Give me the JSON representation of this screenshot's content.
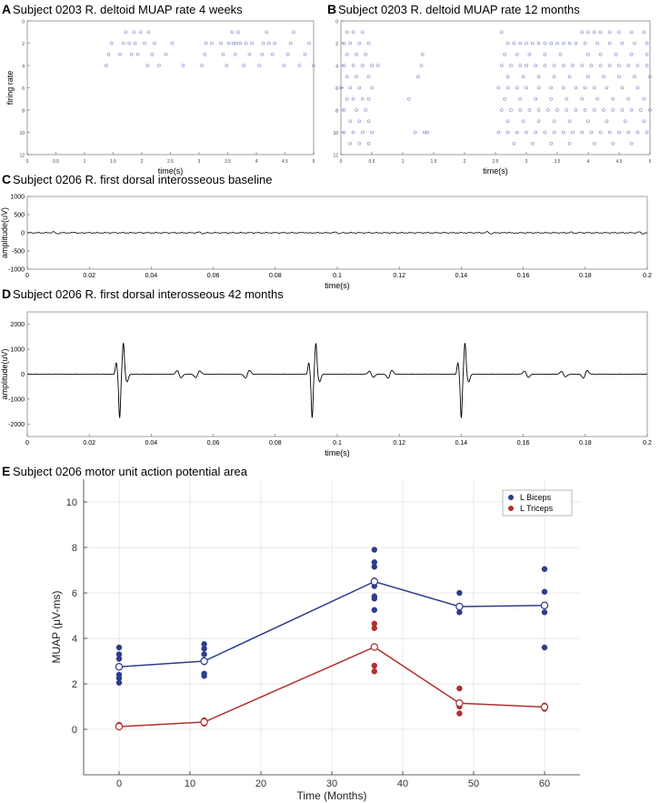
{
  "chart_data": [
    {
      "id": "A",
      "type": "scatter",
      "panel_label": "A",
      "title": "Subject 0203 R. deltoid MUAP rate 4 weeks",
      "xlabel": "time(s)",
      "ylabel": "firing rate",
      "xlim": [
        0,
        5
      ],
      "ylim": [
        0,
        12
      ],
      "y_reversed": true,
      "x_ticks": [
        0,
        0.5,
        1,
        1.5,
        2,
        2.5,
        3,
        3.5,
        4,
        4.5,
        5
      ],
      "y_ticks": [
        0,
        2,
        4,
        6,
        8,
        10,
        12
      ],
      "color": "#7b83c9",
      "points": [
        [
          1.38,
          4
        ],
        [
          1.42,
          3
        ],
        [
          1.47,
          2
        ],
        [
          1.62,
          3
        ],
        [
          1.68,
          2
        ],
        [
          1.72,
          1
        ],
        [
          1.78,
          2
        ],
        [
          1.82,
          3
        ],
        [
          1.86,
          1
        ],
        [
          1.88,
          2
        ],
        [
          1.93,
          3
        ],
        [
          1.98,
          1
        ],
        [
          2.05,
          2
        ],
        [
          2.1,
          4
        ],
        [
          2.12,
          1
        ],
        [
          2.18,
          3
        ],
        [
          2.22,
          2
        ],
        [
          2.3,
          4
        ],
        [
          2.42,
          3
        ],
        [
          2.53,
          2
        ],
        [
          2.72,
          4
        ],
        [
          3.05,
          4
        ],
        [
          3.1,
          3
        ],
        [
          3.12,
          2
        ],
        [
          3.22,
          2
        ],
        [
          3.38,
          2
        ],
        [
          3.42,
          3
        ],
        [
          3.48,
          4
        ],
        [
          3.52,
          2
        ],
        [
          3.58,
          1
        ],
        [
          3.6,
          2
        ],
        [
          3.63,
          3
        ],
        [
          3.65,
          2
        ],
        [
          3.68,
          1
        ],
        [
          3.72,
          2
        ],
        [
          3.78,
          4
        ],
        [
          3.82,
          2
        ],
        [
          3.88,
          3
        ],
        [
          3.92,
          2
        ],
        [
          4.05,
          4
        ],
        [
          4.1,
          3
        ],
        [
          4.12,
          2
        ],
        [
          4.18,
          1
        ],
        [
          4.22,
          2
        ],
        [
          4.28,
          3
        ],
        [
          4.32,
          2
        ],
        [
          4.48,
          4
        ],
        [
          4.55,
          3
        ],
        [
          4.6,
          2
        ],
        [
          4.65,
          1
        ],
        [
          4.75,
          4
        ],
        [
          4.85,
          3
        ],
        [
          4.92,
          2
        ],
        [
          5.0,
          4
        ]
      ]
    },
    {
      "id": "B",
      "type": "scatter",
      "panel_label": "B",
      "title": "Subject 0203 R. deltoid MUAP rate 12 months",
      "xlabel": "time(s)",
      "ylabel": "",
      "xlim": [
        0,
        5
      ],
      "ylim": [
        0,
        12
      ],
      "y_reversed": true,
      "x_ticks": [
        0,
        0.5,
        1,
        1.5,
        2,
        2.5,
        3,
        3.5,
        4,
        4.5,
        5
      ],
      "y_ticks": [
        0,
        2,
        4,
        6,
        8,
        10,
        12
      ],
      "color": "#7b83c9",
      "points": [
        [
          0.1,
          1
        ],
        [
          0.2,
          1
        ],
        [
          0.35,
          1
        ],
        [
          0.05,
          2
        ],
        [
          0.15,
          2
        ],
        [
          0.3,
          2
        ],
        [
          0.45,
          2
        ],
        [
          0.1,
          3
        ],
        [
          0.25,
          3
        ],
        [
          0.4,
          3
        ],
        [
          0.05,
          4
        ],
        [
          0.2,
          4
        ],
        [
          0.35,
          4
        ],
        [
          0.5,
          4
        ],
        [
          0.6,
          4
        ],
        [
          0.1,
          5
        ],
        [
          0.25,
          5
        ],
        [
          0.45,
          5
        ],
        [
          0.0,
          6
        ],
        [
          0.15,
          6
        ],
        [
          0.3,
          6
        ],
        [
          0.5,
          6
        ],
        [
          0.1,
          7
        ],
        [
          0.2,
          7
        ],
        [
          0.35,
          7
        ],
        [
          0.45,
          7
        ],
        [
          0.05,
          8
        ],
        [
          0.25,
          8
        ],
        [
          0.4,
          8
        ],
        [
          0.15,
          9
        ],
        [
          0.3,
          9
        ],
        [
          0.45,
          9
        ],
        [
          0.05,
          10
        ],
        [
          0.2,
          10
        ],
        [
          0.35,
          10
        ],
        [
          0.5,
          10
        ],
        [
          0.15,
          11
        ],
        [
          0.3,
          11
        ],
        [
          0.45,
          11
        ],
        [
          1.3,
          4
        ],
        [
          1.25,
          5
        ],
        [
          1.32,
          3
        ],
        [
          1.1,
          7
        ],
        [
          1.35,
          10
        ],
        [
          1.4,
          10
        ],
        [
          1.2,
          10
        ],
        [
          2.6,
          1
        ],
        [
          2.7,
          2
        ],
        [
          2.8,
          2
        ],
        [
          2.9,
          2
        ],
        [
          3.0,
          2
        ],
        [
          3.1,
          2
        ],
        [
          3.2,
          2
        ],
        [
          3.3,
          2
        ],
        [
          3.4,
          2
        ],
        [
          3.5,
          2
        ],
        [
          3.6,
          2
        ],
        [
          3.7,
          2
        ],
        [
          3.8,
          2
        ],
        [
          2.65,
          3
        ],
        [
          2.85,
          3
        ],
        [
          3.05,
          3
        ],
        [
          3.3,
          3
        ],
        [
          3.55,
          3
        ],
        [
          2.6,
          4
        ],
        [
          2.75,
          4
        ],
        [
          2.9,
          4
        ],
        [
          3.0,
          4
        ],
        [
          3.15,
          4
        ],
        [
          3.3,
          4
        ],
        [
          3.45,
          4
        ],
        [
          3.6,
          4
        ],
        [
          3.75,
          4
        ],
        [
          2.7,
          5
        ],
        [
          2.95,
          5
        ],
        [
          3.2,
          5
        ],
        [
          3.45,
          5
        ],
        [
          3.7,
          5
        ],
        [
          2.55,
          6
        ],
        [
          2.7,
          6
        ],
        [
          2.85,
          6
        ],
        [
          3.0,
          6
        ],
        [
          3.2,
          6
        ],
        [
          3.4,
          6
        ],
        [
          3.6,
          6
        ],
        [
          3.8,
          6
        ],
        [
          2.65,
          7
        ],
        [
          2.9,
          7
        ],
        [
          3.15,
          7
        ],
        [
          3.4,
          7
        ],
        [
          3.65,
          7
        ],
        [
          2.6,
          8
        ],
        [
          2.75,
          8
        ],
        [
          2.9,
          8
        ],
        [
          3.05,
          8
        ],
        [
          3.2,
          8
        ],
        [
          3.35,
          8
        ],
        [
          3.5,
          8
        ],
        [
          3.65,
          8
        ],
        [
          3.8,
          8
        ],
        [
          2.7,
          9
        ],
        [
          2.95,
          9
        ],
        [
          3.2,
          9
        ],
        [
          3.45,
          9
        ],
        [
          3.7,
          9
        ],
        [
          2.55,
          10
        ],
        [
          2.7,
          10
        ],
        [
          2.85,
          10
        ],
        [
          3.0,
          10
        ],
        [
          3.15,
          10
        ],
        [
          3.3,
          10
        ],
        [
          3.45,
          10
        ],
        [
          3.6,
          10
        ],
        [
          3.75,
          10
        ],
        [
          2.8,
          11
        ],
        [
          3.1,
          11
        ],
        [
          3.4,
          11
        ],
        [
          3.7,
          11
        ],
        [
          3.9,
          1
        ],
        [
          4.0,
          1
        ],
        [
          4.1,
          1
        ],
        [
          4.2,
          1
        ],
        [
          4.35,
          1
        ],
        [
          4.5,
          1
        ],
        [
          4.7,
          1
        ],
        [
          4.9,
          1
        ],
        [
          3.95,
          2
        ],
        [
          4.15,
          2
        ],
        [
          4.35,
          2
        ],
        [
          4.55,
          2
        ],
        [
          4.75,
          2
        ],
        [
          4.95,
          2
        ],
        [
          4.0,
          3
        ],
        [
          4.2,
          3
        ],
        [
          4.45,
          3
        ],
        [
          4.7,
          3
        ],
        [
          4.95,
          3
        ],
        [
          3.9,
          4
        ],
        [
          4.05,
          4
        ],
        [
          4.2,
          4
        ],
        [
          4.35,
          4
        ],
        [
          4.5,
          4
        ],
        [
          4.65,
          4
        ],
        [
          4.8,
          4
        ],
        [
          4.95,
          4
        ],
        [
          4.0,
          5
        ],
        [
          4.25,
          5
        ],
        [
          4.5,
          5
        ],
        [
          4.75,
          5
        ],
        [
          5.0,
          5
        ],
        [
          3.95,
          6
        ],
        [
          4.1,
          6
        ],
        [
          4.3,
          6
        ],
        [
          4.55,
          6
        ],
        [
          4.8,
          6
        ],
        [
          3.9,
          7
        ],
        [
          4.15,
          7
        ],
        [
          4.4,
          7
        ],
        [
          4.65,
          7
        ],
        [
          4.9,
          7
        ],
        [
          3.95,
          8
        ],
        [
          4.1,
          8
        ],
        [
          4.25,
          8
        ],
        [
          4.4,
          8
        ],
        [
          4.55,
          8
        ],
        [
          4.7,
          8
        ],
        [
          4.85,
          8
        ],
        [
          5.0,
          8
        ],
        [
          4.0,
          9
        ],
        [
          4.3,
          9
        ],
        [
          4.6,
          9
        ],
        [
          4.9,
          9
        ],
        [
          3.9,
          10
        ],
        [
          4.05,
          10
        ],
        [
          4.2,
          10
        ],
        [
          4.35,
          10
        ],
        [
          4.5,
          10
        ],
        [
          4.65,
          10
        ],
        [
          4.8,
          10
        ],
        [
          4.95,
          10
        ],
        [
          4.1,
          11
        ],
        [
          4.4,
          11
        ],
        [
          4.7,
          11
        ]
      ]
    },
    {
      "id": "C",
      "type": "line",
      "panel_label": "C",
      "title": "Subject 0206 R. first dorsal interosseous baseline",
      "xlabel": "time(s)",
      "ylabel": "amplitude(uV)",
      "xlim": [
        0,
        0.2
      ],
      "ylim": [
        -1000,
        1000
      ],
      "x_ticks": [
        0,
        0.02,
        0.04,
        0.06,
        0.08,
        0.1,
        0.12,
        0.14,
        0.16,
        0.18,
        0.2
      ],
      "y_ticks": [
        -1000,
        -500,
        0,
        500,
        1000
      ],
      "color": "#000000",
      "events": [
        {
          "x": 0.009,
          "amp": 60
        },
        {
          "x": 0.016,
          "amp": 35
        },
        {
          "x": 0.056,
          "amp": 45
        },
        {
          "x": 0.09,
          "amp": 25
        },
        {
          "x": 0.1,
          "amp": 40
        },
        {
          "x": 0.149,
          "amp": 55
        },
        {
          "x": 0.156,
          "amp": 30
        },
        {
          "x": 0.176,
          "amp": 35
        },
        {
          "x": 0.198,
          "amp": 55
        }
      ]
    },
    {
      "id": "D",
      "type": "line",
      "panel_label": "D",
      "title": "Subject 0206 R. first dorsal interosseous 42 months",
      "xlabel": "time(s)",
      "ylabel": "amplitude(uV)",
      "xlim": [
        0,
        0.2
      ],
      "ylim": [
        -2500,
        2500
      ],
      "x_ticks": [
        0,
        0.02,
        0.04,
        0.06,
        0.08,
        0.1,
        0.12,
        0.14,
        0.16,
        0.18,
        0.2
      ],
      "y_ticks": [
        -2000,
        -1000,
        0,
        1000,
        2000
      ],
      "color": "#000000",
      "spikes": [
        {
          "x": 0.0298
        },
        {
          "x": 0.0919
        },
        {
          "x": 0.14
        }
      ],
      "small_events": [
        {
          "x": 0.049,
          "amp": 200
        },
        {
          "x": 0.055,
          "amp": -200
        },
        {
          "x": 0.071,
          "amp": -220
        },
        {
          "x": 0.111,
          "amp": 180
        },
        {
          "x": 0.117,
          "amp": -220
        },
        {
          "x": 0.161,
          "amp": 180
        },
        {
          "x": 0.173,
          "amp": 160
        },
        {
          "x": 0.18,
          "amp": -220
        }
      ]
    },
    {
      "id": "E",
      "type": "scatter",
      "panel_label": "E",
      "title": "Subject 0206 motor unit action potential area",
      "xlabel": "Time (Months)",
      "ylabel": "MUAP (μV-ms)",
      "xlim": [
        -5,
        65
      ],
      "ylim": [
        -2,
        11
      ],
      "x_ticks": [
        0,
        10,
        20,
        30,
        40,
        50,
        60
      ],
      "y_ticks": [
        0,
        2,
        4,
        6,
        8,
        10
      ],
      "grid": true,
      "legend_position": "top-right",
      "series": [
        {
          "name": "L Biceps",
          "color": "#2e3c8c",
          "points": [
            [
              0,
              3.6
            ],
            [
              0,
              3.3
            ],
            [
              0,
              3.1
            ],
            [
              0,
              2.75
            ],
            [
              0,
              2.4
            ],
            [
              0,
              2.25
            ],
            [
              0,
              2.05
            ],
            [
              12,
              3.75
            ],
            [
              12,
              3.55
            ],
            [
              12,
              3.3
            ],
            [
              12,
              2.95
            ],
            [
              12,
              2.45
            ],
            [
              12,
              2.35
            ],
            [
              36,
              7.9
            ],
            [
              36,
              7.35
            ],
            [
              36,
              7.15
            ],
            [
              36,
              6.55
            ],
            [
              36,
              6.3
            ],
            [
              36,
              5.85
            ],
            [
              36,
              5.75
            ],
            [
              36,
              5.25
            ],
            [
              48,
              6.0
            ],
            [
              48,
              5.35
            ],
            [
              48,
              5.15
            ],
            [
              60,
              7.05
            ],
            [
              60,
              6.05
            ],
            [
              60,
              5.15
            ],
            [
              60,
              3.6
            ]
          ],
          "mean": [
            [
              0,
              2.75
            ],
            [
              12,
              3.0
            ],
            [
              36,
              6.5
            ],
            [
              48,
              5.4
            ],
            [
              60,
              5.45
            ]
          ]
        },
        {
          "name": "L Triceps",
          "color": "#b03030",
          "points": [
            [
              0,
              0.2
            ],
            [
              0,
              0.1
            ],
            [
              12,
              0.4
            ],
            [
              12,
              0.25
            ],
            [
              36,
              4.65
            ],
            [
              36,
              4.45
            ],
            [
              36,
              3.65
            ],
            [
              36,
              2.8
            ],
            [
              36,
              2.55
            ],
            [
              48,
              1.8
            ],
            [
              48,
              1.0
            ],
            [
              48,
              0.7
            ],
            [
              60,
              1.05
            ],
            [
              60,
              0.9
            ]
          ],
          "mean": [
            [
              0,
              0.12
            ],
            [
              12,
              0.32
            ],
            [
              36,
              3.62
            ],
            [
              48,
              1.15
            ],
            [
              60,
              0.98
            ]
          ]
        }
      ]
    }
  ]
}
